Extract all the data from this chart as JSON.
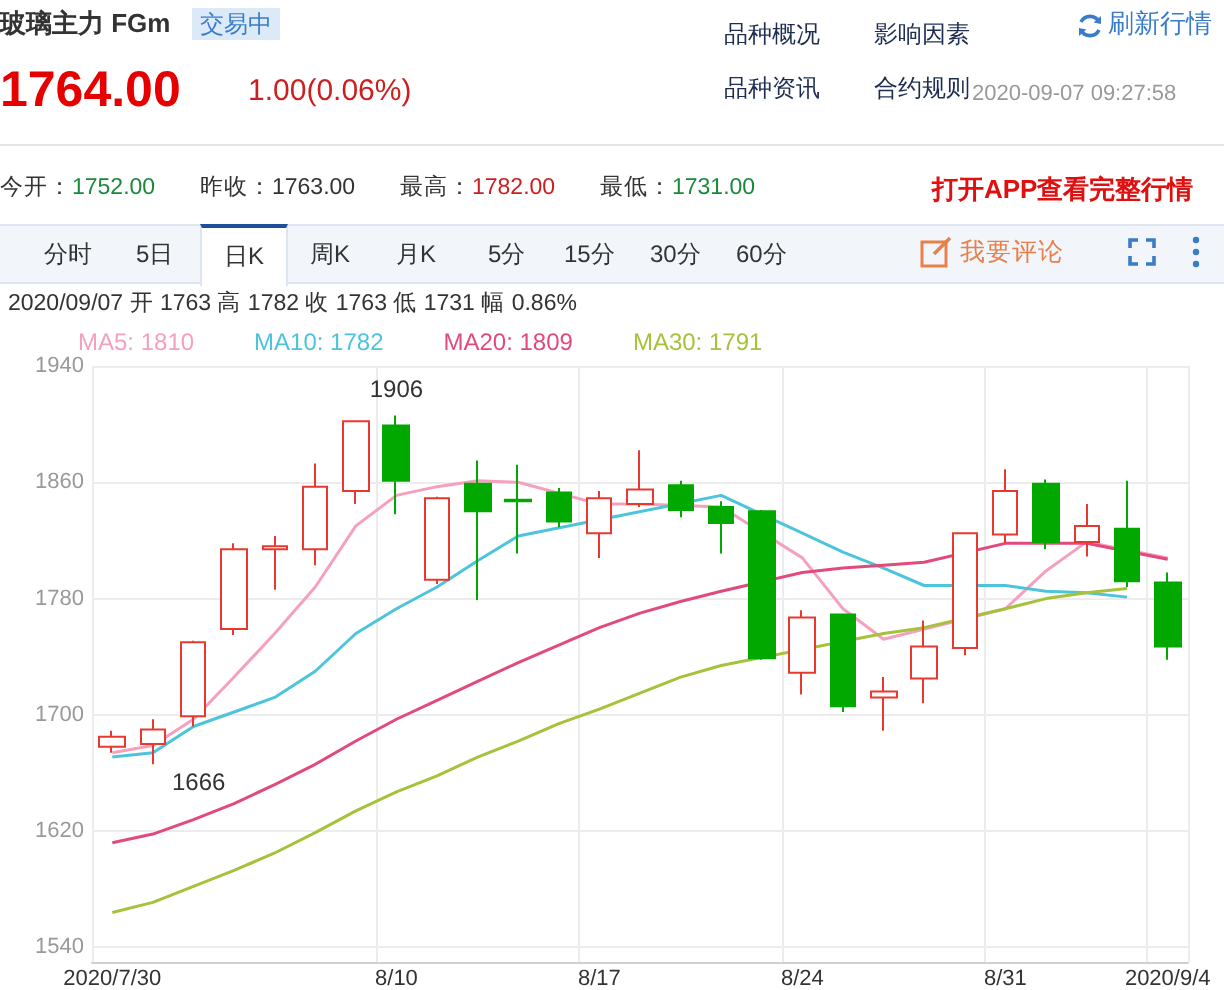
{
  "chart_data": {
    "type": "candlestick",
    "title": "玻璃主力 FGm",
    "categories": [
      "2020/7/30",
      null,
      null,
      null,
      null,
      null,
      null,
      "8/10",
      null,
      null,
      null,
      null,
      "8/17",
      null,
      null,
      null,
      null,
      "8/24",
      null,
      null,
      null,
      null,
      "8/31",
      null,
      null,
      null,
      "2020/9/4"
    ],
    "series": [
      {
        "type": "candlestick",
        "colors": [
          "#e8382f",
          "#e8382f",
          "#e8382f",
          "#e8382f",
          "#e8382f",
          "#e8382f",
          "#e8382f",
          "#00a800",
          "#e8382f",
          "#00a800",
          "#00a800",
          "#00a800",
          "#e8382f",
          "#e8382f",
          "#00a800",
          "#00a800",
          "#00a800",
          "#e8382f",
          "#00a800",
          "#e8382f",
          "#e8382f",
          "#e8382f",
          "#e8382f",
          "#00a800",
          "#e8382f",
          "#00a800",
          "#00a800"
        ],
        "ohlc": [
          [
            1678,
            1689,
            1674,
            1685
          ],
          [
            1680,
            1697,
            1666,
            1690
          ],
          [
            1699,
            1751,
            1692,
            1750
          ],
          [
            1759,
            1818,
            1755,
            1814
          ],
          [
            1814,
            1823,
            1786,
            1816
          ],
          [
            1814,
            1873,
            1803,
            1857
          ],
          [
            1854,
            1902,
            1845,
            1902
          ],
          [
            1899,
            1906,
            1838,
            1861
          ],
          [
            1793,
            1850,
            1790,
            1849
          ],
          [
            1859,
            1875,
            1779,
            1840
          ],
          [
            1848,
            1872,
            1811,
            1847
          ],
          [
            1853,
            1856,
            1829,
            1833
          ],
          [
            1825,
            1854,
            1808,
            1849
          ],
          [
            1845,
            1882,
            1843,
            1855
          ],
          [
            1858,
            1861,
            1836,
            1841
          ],
          [
            1843,
            1847,
            1811,
            1832
          ],
          [
            1840,
            1841,
            1738,
            1739
          ],
          [
            1729,
            1772,
            1714,
            1767
          ],
          [
            1769,
            1769,
            1702,
            1706
          ],
          [
            1712,
            1726,
            1689,
            1716
          ],
          [
            1725,
            1765,
            1708,
            1747
          ],
          [
            1746,
            1825,
            1741,
            1825
          ],
          [
            1824,
            1869,
            1818,
            1854
          ],
          [
            1859,
            1862,
            1814,
            1819
          ],
          [
            1819,
            1845,
            1809,
            1830
          ],
          [
            1828,
            1861,
            1788,
            1792
          ],
          [
            1791,
            1798,
            1738,
            1747
          ]
        ]
      },
      {
        "type": "line",
        "name": "MA5: 1810",
        "color": "#f5a0bd",
        "values": [
          1674,
          1679,
          1697,
          1726,
          1756,
          1788,
          1830,
          1851,
          1857,
          1861,
          1860,
          null,
          1845,
          1845,
          null,
          1843,
          null,
          1808,
          1773,
          1752,
          null,
          null,
          1773,
          1799,
          1819,
          null,
          1808
        ]
      },
      {
        "type": "line",
        "name": "MA10: 1782",
        "color": "#4cc4dc",
        "values": [
          1671,
          1674,
          1692,
          1702,
          1712,
          1730,
          1756,
          1773,
          1788,
          1806,
          1823,
          null,
          null,
          null,
          null,
          1851,
          null,
          1825,
          1812,
          1801,
          1789,
          null,
          1789,
          1785,
          1784,
          1781,
          null
        ]
      },
      {
        "type": "line",
        "name": "MA20: 1809",
        "color": "#e24a7c",
        "values": [
          1612,
          1618,
          1628,
          1639,
          1652,
          1666,
          1682,
          1697,
          1710,
          1723,
          1736,
          1748,
          1760,
          1770,
          1778,
          1785,
          null,
          1798,
          1801,
          1803,
          1805,
          null,
          1818,
          1818,
          1818,
          null,
          1807
        ]
      },
      {
        "type": "line",
        "name": "MA30: 1791",
        "color": "#a5c23a",
        "values": [
          1564,
          1571,
          1582,
          1593,
          1605,
          1619,
          1634,
          1647,
          1658,
          1671,
          1682,
          1694,
          1704,
          1715,
          1726,
          1734,
          null,
          null,
          null,
          1756,
          1760,
          null,
          1773,
          1780,
          1784,
          1787,
          null
        ]
      }
    ],
    "ylim": [
      1530,
      1940
    ],
    "yticks": [
      1540,
      1620,
      1700,
      1780,
      1860,
      1940
    ],
    "grid": true,
    "legend": "top left",
    "marker": "none",
    "line_style": "solid",
    "annotations": [
      "交易中",
      "1764.00",
      "1.00(0.06%)",
      "品种概况",
      "影响因素",
      "刷新行情",
      "品种资讯",
      "合约规则",
      "2020-09-07 09:27:58",
      "今开：1752.00",
      "昨收：1763.00",
      "最高：1782.00",
      "最低：1731.00",
      "打开APP查看完整行情",
      "分时",
      "5日",
      "日K",
      "周K",
      "月K",
      "5分",
      "15分",
      "30分",
      "60分",
      "我要评论",
      "2020/09/07 开 1763 高 1782 收 1763 低 1731 幅 0.86%",
      {
        "text": "1906",
        "x": "8/10",
        "y": 1906
      },
      "1666"
    ]
  }
}
